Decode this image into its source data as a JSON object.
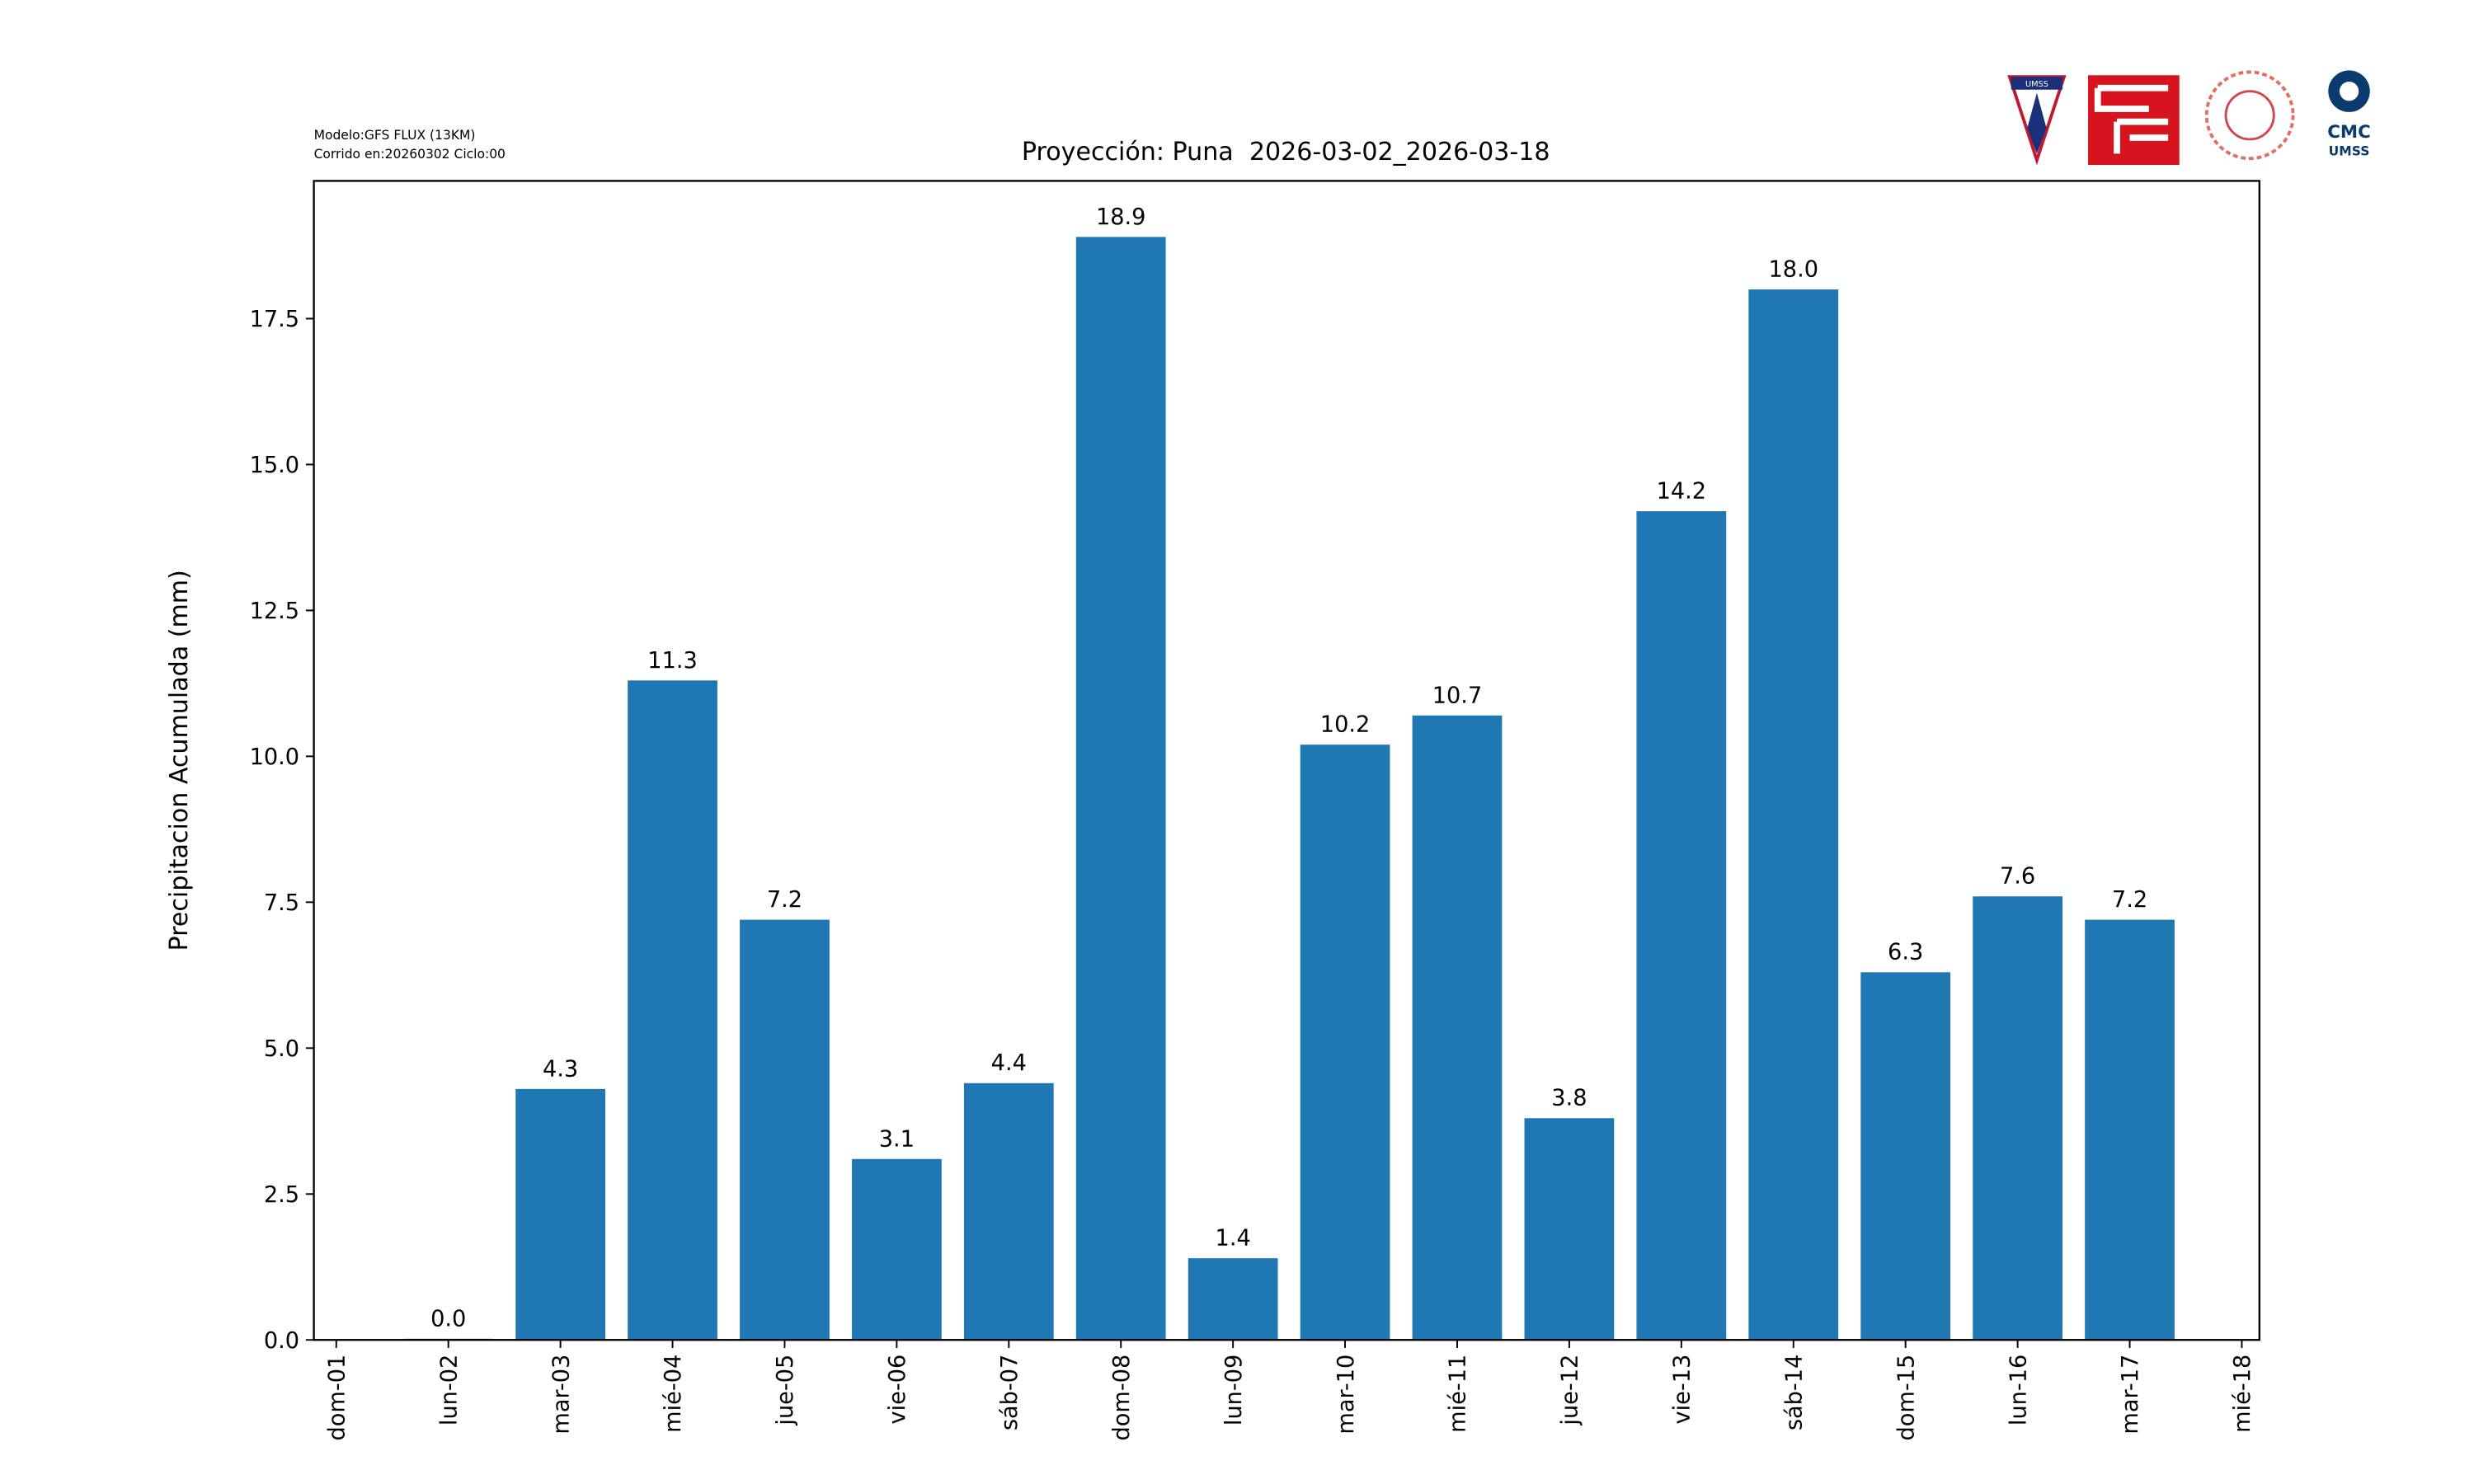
{
  "chart_data": {
    "type": "bar",
    "title": "Proyección: Puna  2026-03-02_2026-03-18",
    "model_note": "Modelo:GFS FLUX (13KM)",
    "run_note": "Corrido en:20260302 Ciclo:00",
    "y_label": "Precipitacion Acumulada (mm)",
    "categories": [
      "dom-01",
      "lun-02",
      "mar-03",
      "mié-04",
      "jue-05",
      "vie-06",
      "sáb-07",
      "dom-08",
      "lun-09",
      "mar-10",
      "mié-11",
      "jue-12",
      "vie-13",
      "sáb-14",
      "dom-15",
      "lun-16",
      "mar-17",
      "mié-18"
    ],
    "values": [
      null,
      0.02,
      4.3,
      11.3,
      7.2,
      3.1,
      4.4,
      18.9,
      1.4,
      10.2,
      10.7,
      3.8,
      14.2,
      18.0,
      6.3,
      7.6,
      7.2,
      null
    ],
    "value_labels": [
      null,
      "0.0",
      "4.3",
      "11.3",
      "7.2",
      "3.1",
      "4.4",
      "18.9",
      "1.4",
      "10.2",
      "10.7",
      "3.8",
      "14.2",
      "18.0",
      "6.3",
      "7.6",
      "7.2",
      null
    ],
    "color": "#1f77b4",
    "ylim": [
      0,
      19.86
    ],
    "yticks": [
      {
        "value": 0,
        "label": "0.0"
      },
      2.5,
      {
        "value": 5,
        "label": "5.0"
      },
      7.5,
      {
        "value": 10,
        "label": "10.0"
      },
      12.5,
      {
        "value": 15,
        "label": "15.0"
      },
      17.5
    ],
    "grid": false
  },
  "logos": {
    "umss": "UMSS",
    "cmc": "CMC",
    "cmc_sub": "UMSS"
  }
}
